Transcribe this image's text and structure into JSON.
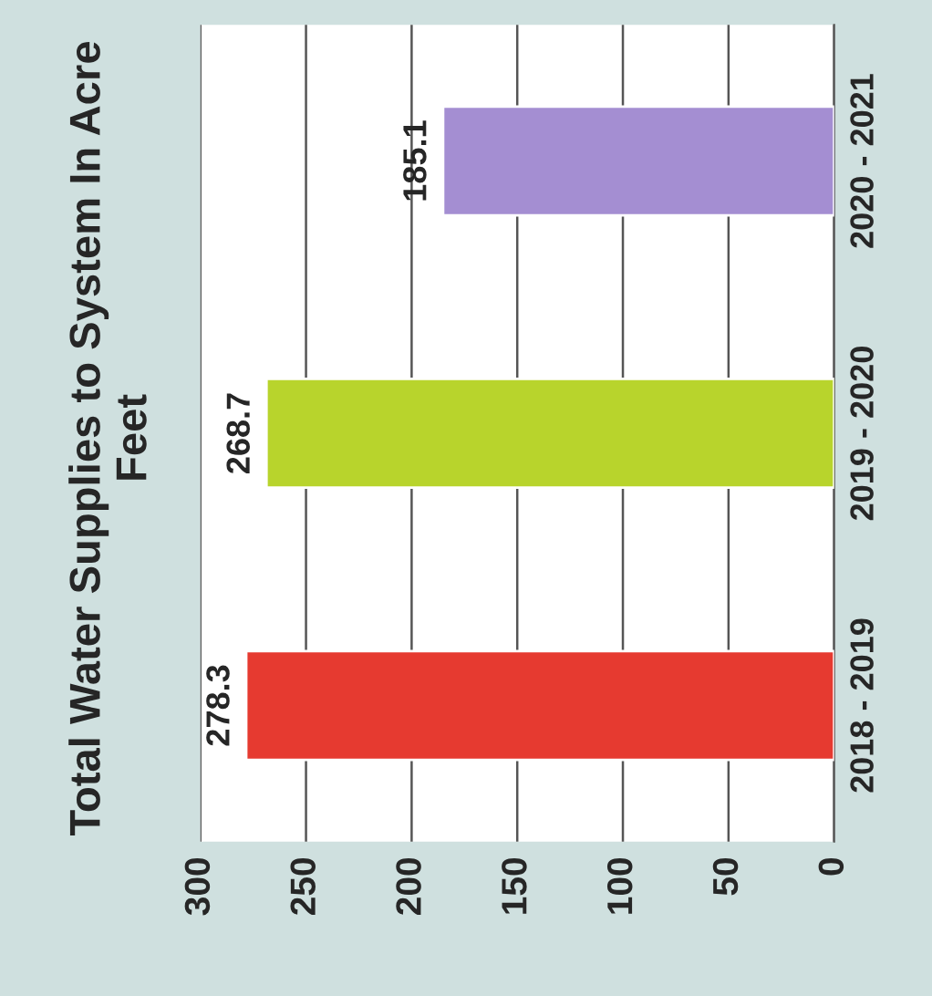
{
  "chart_data": {
    "type": "bar",
    "orientation": "horizontal",
    "title": "Total Water Supplies to System In Acre Feet",
    "categories": [
      "2020 - 2021",
      "2019 - 2020",
      "2018 - 2019"
    ],
    "values": [
      185.1,
      268.7,
      278.3
    ],
    "colors": [
      "#a48ed2",
      "#b8d42c",
      "#e63a30"
    ],
    "xlim": [
      300,
      0
    ],
    "xticks": [
      0,
      50,
      100,
      150,
      200,
      250,
      300
    ],
    "grid": "x",
    "data_labels": true
  }
}
